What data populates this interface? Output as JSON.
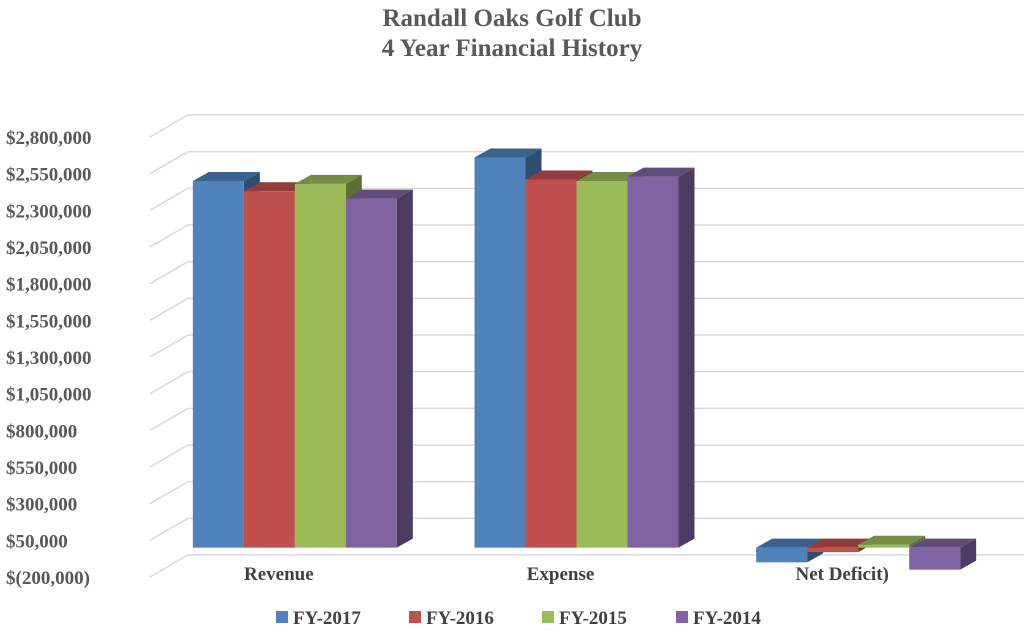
{
  "chart_data": {
    "type": "bar",
    "title": "Randall Oaks Golf Club",
    "subtitle": "4 Year Financial History",
    "xlabel": "",
    "ylabel": "",
    "categories": [
      "Revenue",
      "Expense",
      "Net Deficit)"
    ],
    "series": [
      {
        "name": "FY-2017",
        "color": "#4F81BD",
        "values": [
          2500000,
          2660000,
          -100000
        ]
      },
      {
        "name": "FY-2016",
        "color": "#C0504D",
        "values": [
          2430000,
          2510000,
          -30000
        ]
      },
      {
        "name": "FY-2015",
        "color": "#9BBB59",
        "values": [
          2480000,
          2500000,
          20000
        ]
      },
      {
        "name": "FY-2014",
        "color": "#8064A2",
        "values": [
          2380000,
          2530000,
          -150000
        ]
      }
    ],
    "ylim": [
      -200000,
      2800000
    ],
    "y_ticks": [
      -200000,
      50000,
      300000,
      550000,
      800000,
      1050000,
      1300000,
      1550000,
      1800000,
      2050000,
      2300000,
      2550000,
      2800000
    ],
    "y_tick_labels": [
      "$(200,000)",
      "$50,000",
      "$300,000",
      "$550,000",
      "$800,000",
      "$1,050,000",
      "$1,300,000",
      "$1,550,000",
      "$1,800,000",
      "$2,050,000",
      "$2,300,000",
      "$2,550,000",
      "$2,800,000"
    ],
    "grid": true,
    "legend": "bottom",
    "style": "3d-clustered-column"
  }
}
